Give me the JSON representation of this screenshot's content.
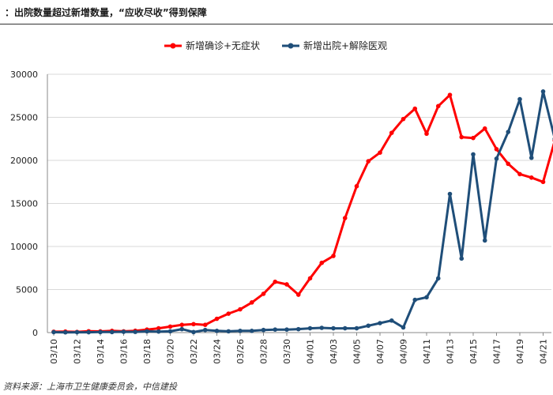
{
  "header": {
    "title": "：出院数量超过新增数量，“应收尽收”得到保障"
  },
  "footer": {
    "source": "资料来源：上海市卫生健康委员会，中信建投"
  },
  "colors": {
    "series_new": "#ff0000",
    "series_discharged": "#1f4e79",
    "grid": "#d9d9d9",
    "axis": "#888888"
  },
  "chart_data": {
    "type": "line",
    "title": "",
    "xlabel": "",
    "ylabel": "",
    "ylim": [
      0,
      30000
    ],
    "yticks": [
      0,
      5000,
      10000,
      15000,
      20000,
      25000,
      30000
    ],
    "grid": "horizontal",
    "legend_position": "top-center",
    "x": [
      "03/10",
      "03/11",
      "03/12",
      "03/13",
      "03/14",
      "03/15",
      "03/16",
      "03/17",
      "03/18",
      "03/19",
      "03/20",
      "03/21",
      "03/22",
      "03/23",
      "03/24",
      "03/25",
      "03/26",
      "03/27",
      "03/28",
      "03/29",
      "03/30",
      "03/31",
      "04/01",
      "04/02",
      "04/03",
      "04/04",
      "04/05",
      "04/06",
      "04/07",
      "04/08",
      "04/09",
      "04/10",
      "04/11",
      "04/12",
      "04/13",
      "04/14",
      "04/15",
      "04/16",
      "04/17",
      "04/18",
      "04/19",
      "04/20",
      "04/21",
      "04/22"
    ],
    "xtick_labels": [
      "03/10",
      "03/12",
      "03/14",
      "03/16",
      "03/18",
      "03/20",
      "03/22",
      "03/24",
      "03/26",
      "03/28",
      "03/30",
      "04/01",
      "04/03",
      "04/05",
      "04/07",
      "04/09",
      "04/11",
      "04/13",
      "04/15",
      "04/17",
      "04/19",
      "04/21"
    ],
    "series": [
      {
        "name": "新增确诊+无症状",
        "values": [
          100,
          120,
          80,
          160,
          140,
          200,
          150,
          210,
          350,
          500,
          700,
          900,
          980,
          900,
          1600,
          2200,
          2700,
          3500,
          4500,
          5900,
          5600,
          4400,
          6300,
          8100,
          8900,
          13300,
          17000,
          19900,
          20900,
          23200,
          24800,
          26000,
          23100,
          26300,
          27600,
          22700,
          22600,
          23700,
          21300,
          19600,
          18400,
          18000,
          17500,
          22300
        ]
      },
      {
        "name": "新增出院+解除医观",
        "values": [
          50,
          30,
          40,
          40,
          60,
          60,
          90,
          80,
          150,
          120,
          150,
          400,
          60,
          300,
          200,
          150,
          200,
          200,
          300,
          350,
          350,
          400,
          500,
          550,
          500,
          500,
          500,
          800,
          1100,
          1400,
          600,
          3800,
          4100,
          6300,
          16100,
          8600,
          20700,
          10700,
          20200,
          23300,
          27100,
          20300,
          28000,
          22500
        ]
      }
    ]
  }
}
